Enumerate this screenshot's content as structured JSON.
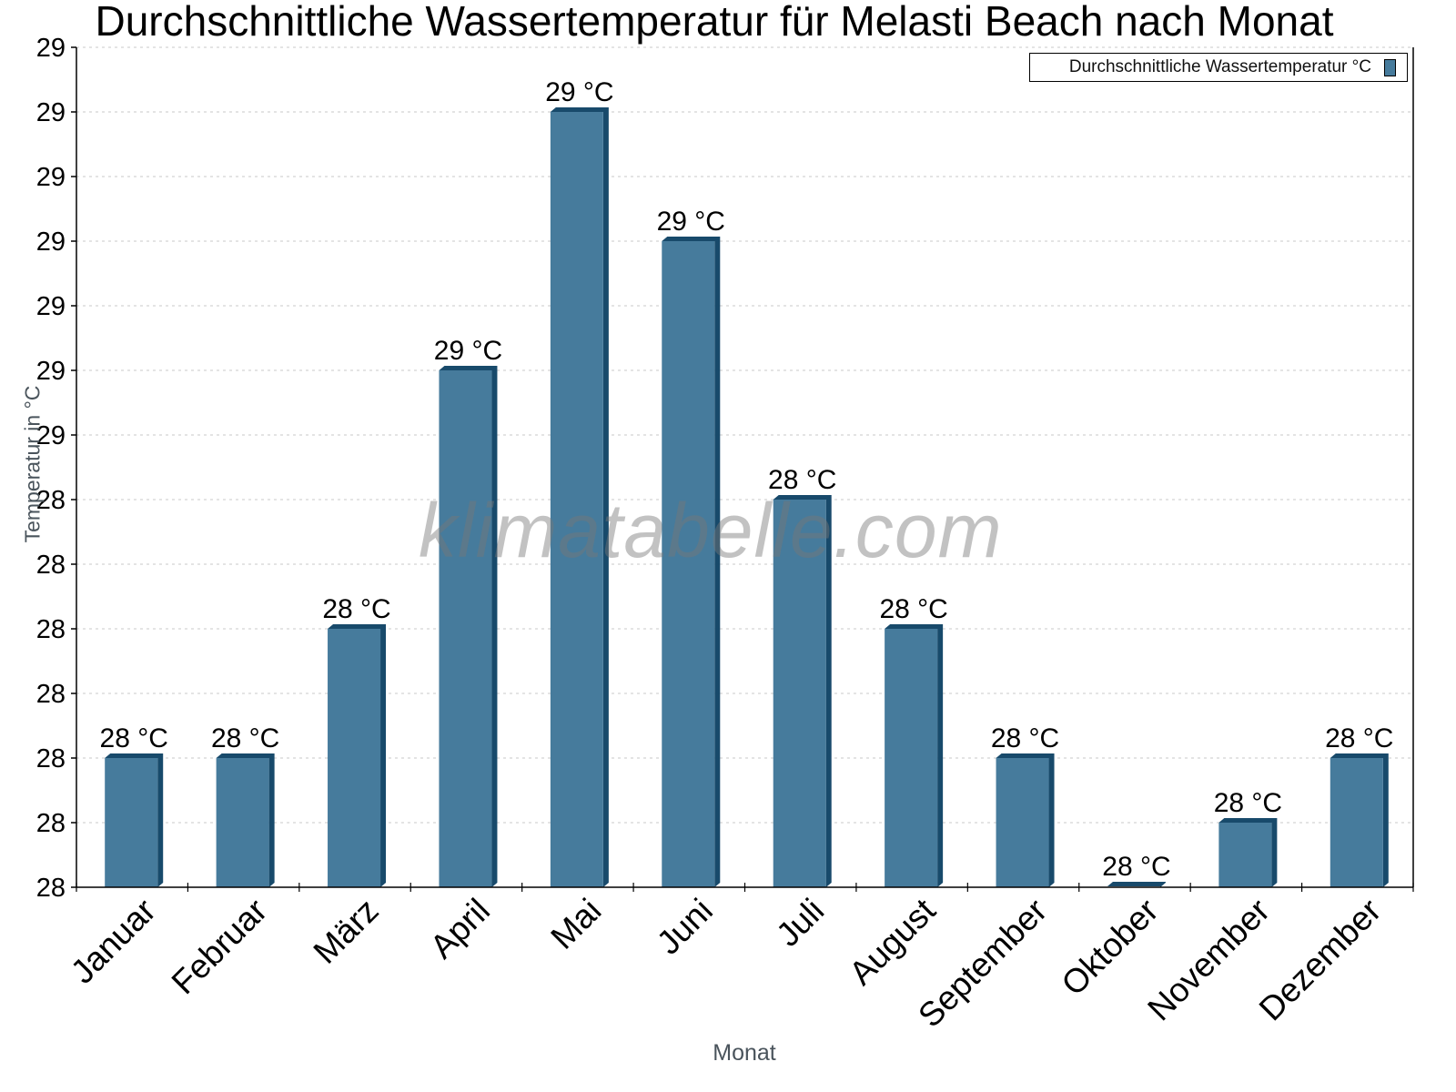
{
  "chart_data": {
    "type": "bar",
    "title": "Durchschnittliche Wassertemperatur für Melasti Beach nach Monat",
    "xlabel": "Monat",
    "ylabel": "Temperatur in °C",
    "categories": [
      "Januar",
      "Februar",
      "März",
      "April",
      "Mai",
      "Juni",
      "Juli",
      "August",
      "September",
      "Oktober",
      "November",
      "Dezember"
    ],
    "series": [
      {
        "name": "Durchschnittliche Wassertemperatur °C",
        "values": [
          28.0,
          28.0,
          28.2,
          28.6,
          29.0,
          28.8,
          28.4,
          28.2,
          28.0,
          27.8,
          27.9,
          28.0
        ],
        "data_labels": [
          "28 °C",
          "28 °C",
          "28 °C",
          "29 °C",
          "29 °C",
          "29 °C",
          "28 °C",
          "28 °C",
          "28 °C",
          "28 °C",
          "28 °C",
          "28 °C"
        ],
        "color": "#467b9c",
        "shade_color": "#184a6b"
      }
    ],
    "ylim": [
      27.8,
      29.1
    ],
    "ytick_step": 0.1,
    "ytick_labels": [
      "28",
      "28",
      "28",
      "28",
      "28",
      "28",
      "28",
      "29",
      "29",
      "29",
      "29",
      "29",
      "29",
      "29"
    ],
    "grid": true,
    "legend_position": "top-right",
    "x_label_rotation": -45
  },
  "legend": {
    "label": "Durchschnittliche Wassertemperatur °C"
  },
  "watermark": "klimatabelle.com",
  "colors": {
    "bar": "#467b9c",
    "bar_shade": "#184a6b",
    "grid": "#c8c8c8",
    "axis": "#000000",
    "axis_title": "#4a545c"
  }
}
